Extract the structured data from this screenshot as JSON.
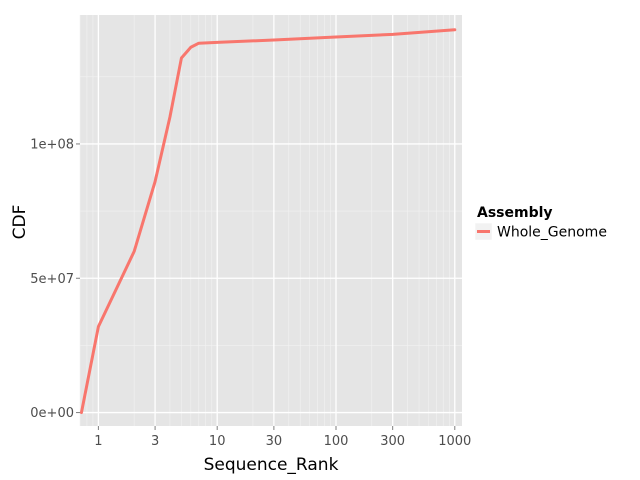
{
  "chart_data": {
    "type": "line",
    "xlabel": "Sequence_Rank",
    "ylabel": "CDF",
    "x_scale": "log10",
    "xlim": [
      0.7,
      1150
    ],
    "ylim": [
      -5000000,
      148000000
    ],
    "x_ticks": [
      {
        "value": 1,
        "label": "1"
      },
      {
        "value": 3,
        "label": "3"
      },
      {
        "value": 10,
        "label": "10"
      },
      {
        "value": 30,
        "label": "30"
      },
      {
        "value": 100,
        "label": "100"
      },
      {
        "value": 300,
        "label": "300"
      },
      {
        "value": 1000,
        "label": "1000"
      }
    ],
    "y_ticks": [
      {
        "value": 0,
        "label": "0e+00"
      },
      {
        "value": 50000000,
        "label": "5e+07"
      },
      {
        "value": 100000000,
        "label": "1e+08"
      }
    ],
    "grid": true,
    "legend": {
      "title": "Assembly",
      "position": "right"
    },
    "series": [
      {
        "name": "Whole_Genome",
        "color": "#f8766d",
        "x": [
          0.72,
          1,
          2,
          3,
          4,
          5,
          6,
          7,
          10,
          30,
          100,
          300,
          1000
        ],
        "y": [
          0,
          32000000,
          60000000,
          86000000,
          110000000,
          132000000,
          136000000,
          137500000,
          137800000,
          138700000,
          139800000,
          140800000,
          142500000
        ]
      }
    ]
  }
}
